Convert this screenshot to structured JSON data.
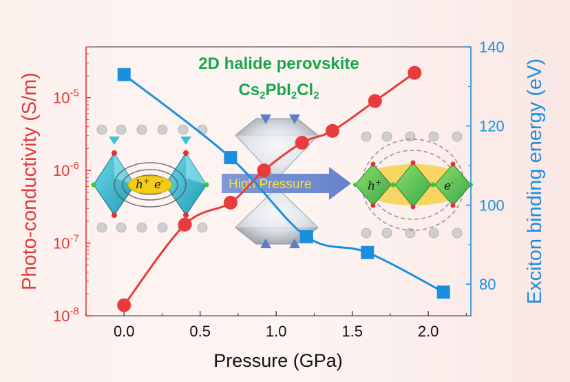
{
  "title_line1": "2D halide perovskite",
  "title_line2": {
    "base": "Cs",
    "sub1": "2",
    "mid": "PbI",
    "sub2": "2",
    "mid2": "Cl",
    "sub3": "2"
  },
  "arrow_label": "High Pressure",
  "carriers": {
    "hole": "h",
    "hole_sup": "+",
    "electron": "e",
    "electron_sup": "-"
  },
  "colors": {
    "conductivity": "#e83b3b",
    "binding_energy": "#1a8fe0",
    "title": "#1aa64a",
    "arrow": "#6f8fd6"
  },
  "chart_data": {
    "type": "line",
    "xlabel": "Pressure (GPa)",
    "xlim": [
      -0.25,
      2.28
    ],
    "xticks": [
      "0.0",
      "0.5",
      "1.0",
      "1.5",
      "2.0"
    ],
    "ylabel_left": "Photo-conductivity (S/m)",
    "ylim_left": [
      1e-08,
      5e-05
    ],
    "yscale_left": "log",
    "yticks_left": [
      {
        "base": "10",
        "exp": "-8"
      },
      {
        "base": "10",
        "exp": "-7"
      },
      {
        "base": "10",
        "exp": "-6"
      },
      {
        "base": "10",
        "exp": "-5"
      }
    ],
    "ylabel_right": "Exciton binding energy (eV)",
    "ylim_right": [
      72,
      140
    ],
    "yticks_right": [
      "80",
      "100",
      "120",
      "140"
    ],
    "series": [
      {
        "axis": "left",
        "marker": "circle",
        "x": [
          0.0,
          0.4,
          0.7,
          0.92,
          1.17,
          1.37,
          1.65,
          1.91
        ],
        "y": [
          1.4e-08,
          1.8e-07,
          3.6e-07,
          1e-06,
          2.4e-06,
          3.5e-06,
          9e-06,
          2.2e-05
        ]
      },
      {
        "axis": "right",
        "marker": "square",
        "x": [
          0.0,
          0.7,
          1.2,
          1.6,
          2.1
        ],
        "y": [
          133,
          112,
          92,
          88,
          78
        ]
      }
    ]
  }
}
